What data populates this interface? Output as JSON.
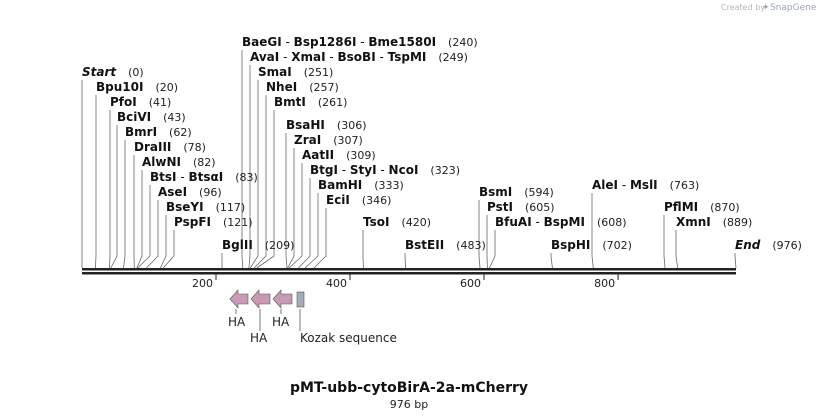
{
  "credit": {
    "prefix": "Created by",
    "brand": "SnapGene"
  },
  "title": "pMT-ubb-cytoBirA-2a-mCherry",
  "subtitle": "976 bp",
  "sequence_length": 976,
  "ruler_ticks": [
    {
      "label": "200",
      "value": 200
    },
    {
      "label": "400",
      "value": 400
    },
    {
      "label": "600",
      "value": 600
    },
    {
      "label": "800",
      "value": 800
    }
  ],
  "sites": [
    {
      "names": [
        "BaeGI",
        "Bsp1286I",
        "Bme1580I"
      ],
      "position": 240,
      "label": "(240)",
      "style": "bold"
    },
    {
      "names": [
        "AvaI",
        "XmaI",
        "BsoBI",
        "TspMI"
      ],
      "position": 249,
      "label": "(249)",
      "style": "bold"
    },
    {
      "names": [
        "SmaI"
      ],
      "position": 251,
      "label": "(251)",
      "style": "bold"
    },
    {
      "names": [
        "NheI"
      ],
      "position": 257,
      "label": "(257)",
      "style": "bold"
    },
    {
      "names": [
        "BmtI"
      ],
      "position": 261,
      "label": "(261)",
      "style": "bold"
    },
    {
      "names": [
        "Start"
      ],
      "position": 0,
      "label": "(0)",
      "style": "italic"
    },
    {
      "names": [
        "Bpu10I"
      ],
      "position": 20,
      "label": "(20)",
      "style": "bold"
    },
    {
      "names": [
        "PfoI"
      ],
      "position": 41,
      "label": "(41)",
      "style": "bold"
    },
    {
      "names": [
        "BciVI"
      ],
      "position": 43,
      "label": "(43)",
      "style": "bold"
    },
    {
      "names": [
        "BmrI"
      ],
      "position": 62,
      "label": "(62)",
      "style": "bold"
    },
    {
      "names": [
        "DraIII"
      ],
      "position": 78,
      "label": "(78)",
      "style": "bold"
    },
    {
      "names": [
        "AlwNI"
      ],
      "position": 82,
      "label": "(82)",
      "style": "bold"
    },
    {
      "names": [
        "BtsI",
        "BtsαI"
      ],
      "position": 83,
      "label": "(83)",
      "style": "bold"
    },
    {
      "names": [
        "AseI"
      ],
      "position": 96,
      "label": "(96)",
      "style": "bold"
    },
    {
      "names": [
        "BseYI"
      ],
      "position": 117,
      "label": "(117)",
      "style": "bold"
    },
    {
      "names": [
        "PspFI"
      ],
      "position": 121,
      "label": "(121)",
      "style": "bold"
    },
    {
      "names": [
        "BsaHI"
      ],
      "position": 306,
      "label": "(306)",
      "style": "bold"
    },
    {
      "names": [
        "ZraI"
      ],
      "position": 307,
      "label": "(307)",
      "style": "bold"
    },
    {
      "names": [
        "AatII"
      ],
      "position": 309,
      "label": "(309)",
      "style": "bold"
    },
    {
      "names": [
        "BtgI",
        "StyI",
        "NcoI"
      ],
      "position": 323,
      "label": "(323)",
      "style": "bold"
    },
    {
      "names": [
        "BamHI"
      ],
      "position": 333,
      "label": "(333)",
      "style": "bold"
    },
    {
      "names": [
        "EciI"
      ],
      "position": 346,
      "label": "(346)",
      "style": "bold"
    },
    {
      "names": [
        "BglII"
      ],
      "position": 209,
      "label": "(209)",
      "style": "bold"
    },
    {
      "names": [
        "TsoI"
      ],
      "position": 420,
      "label": "(420)",
      "style": "bold"
    },
    {
      "names": [
        "BstEII"
      ],
      "position": 483,
      "label": "(483)",
      "style": "bold"
    },
    {
      "names": [
        "BsmI"
      ],
      "position": 594,
      "label": "(594)",
      "style": "bold"
    },
    {
      "names": [
        "PstI"
      ],
      "position": 605,
      "label": "(605)",
      "style": "bold"
    },
    {
      "names": [
        "BfuAI",
        "BspMI"
      ],
      "position": 608,
      "label": "(608)",
      "style": "bold"
    },
    {
      "names": [
        "BspHI"
      ],
      "position": 702,
      "label": "(702)",
      "style": "bold"
    },
    {
      "names": [
        "AleI",
        "MslI"
      ],
      "position": 763,
      "label": "(763)",
      "style": "bold"
    },
    {
      "names": [
        "PflMI"
      ],
      "position": 870,
      "label": "(870)",
      "style": "bold"
    },
    {
      "names": [
        "XmnI"
      ],
      "position": 889,
      "label": "(889)",
      "style": "bold"
    },
    {
      "names": [
        "End"
      ],
      "position": 976,
      "label": "(976)",
      "style": "italic"
    }
  ],
  "features": [
    {
      "name": "HA",
      "type": "arrow-left",
      "color": "#c99ab5"
    },
    {
      "name": "HA",
      "type": "arrow-left",
      "color": "#c99ab5"
    },
    {
      "name": "HA",
      "type": "arrow-left",
      "color": "#c99ab5"
    },
    {
      "name": "Kozak sequence",
      "type": "box",
      "color": "#a3abb8"
    }
  ]
}
